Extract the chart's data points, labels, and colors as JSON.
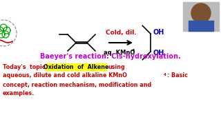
{
  "bg_color": "#ffffff",
  "cold_dil_text": "Cold, dil.",
  "cold_dil_color": "#cc0000",
  "kmno4_line": "aq. KMnO",
  "kmno4_sub": "4",
  "kmno4_color": "#000000",
  "oh_color": "#0000cc",
  "baeyer_text": "Baeyer's reaction: Cis-hydroxylation.",
  "baeyer_color": "#cc00cc",
  "today_label": "Today's  topic:",
  "today_color": "#cc0000",
  "highlight_text": "Oxidation  of  Alkene",
  "highlight_bg": "#ffff00",
  "highlight_color": "#000000",
  "using_text": "using",
  "line2": "aqueous, dilute and cold alkaline KMnO",
  "line2_sub": "4",
  "line2_end": ": Basic",
  "line3": "concept, reaction mechanism, modification and",
  "line4": "examples.",
  "text_color": "#cc0000",
  "bond_color": "#000000",
  "logo_ring_color": "#00aa00",
  "logo_outer_color": "#888888",
  "logo_wave_color": "#cc0000"
}
